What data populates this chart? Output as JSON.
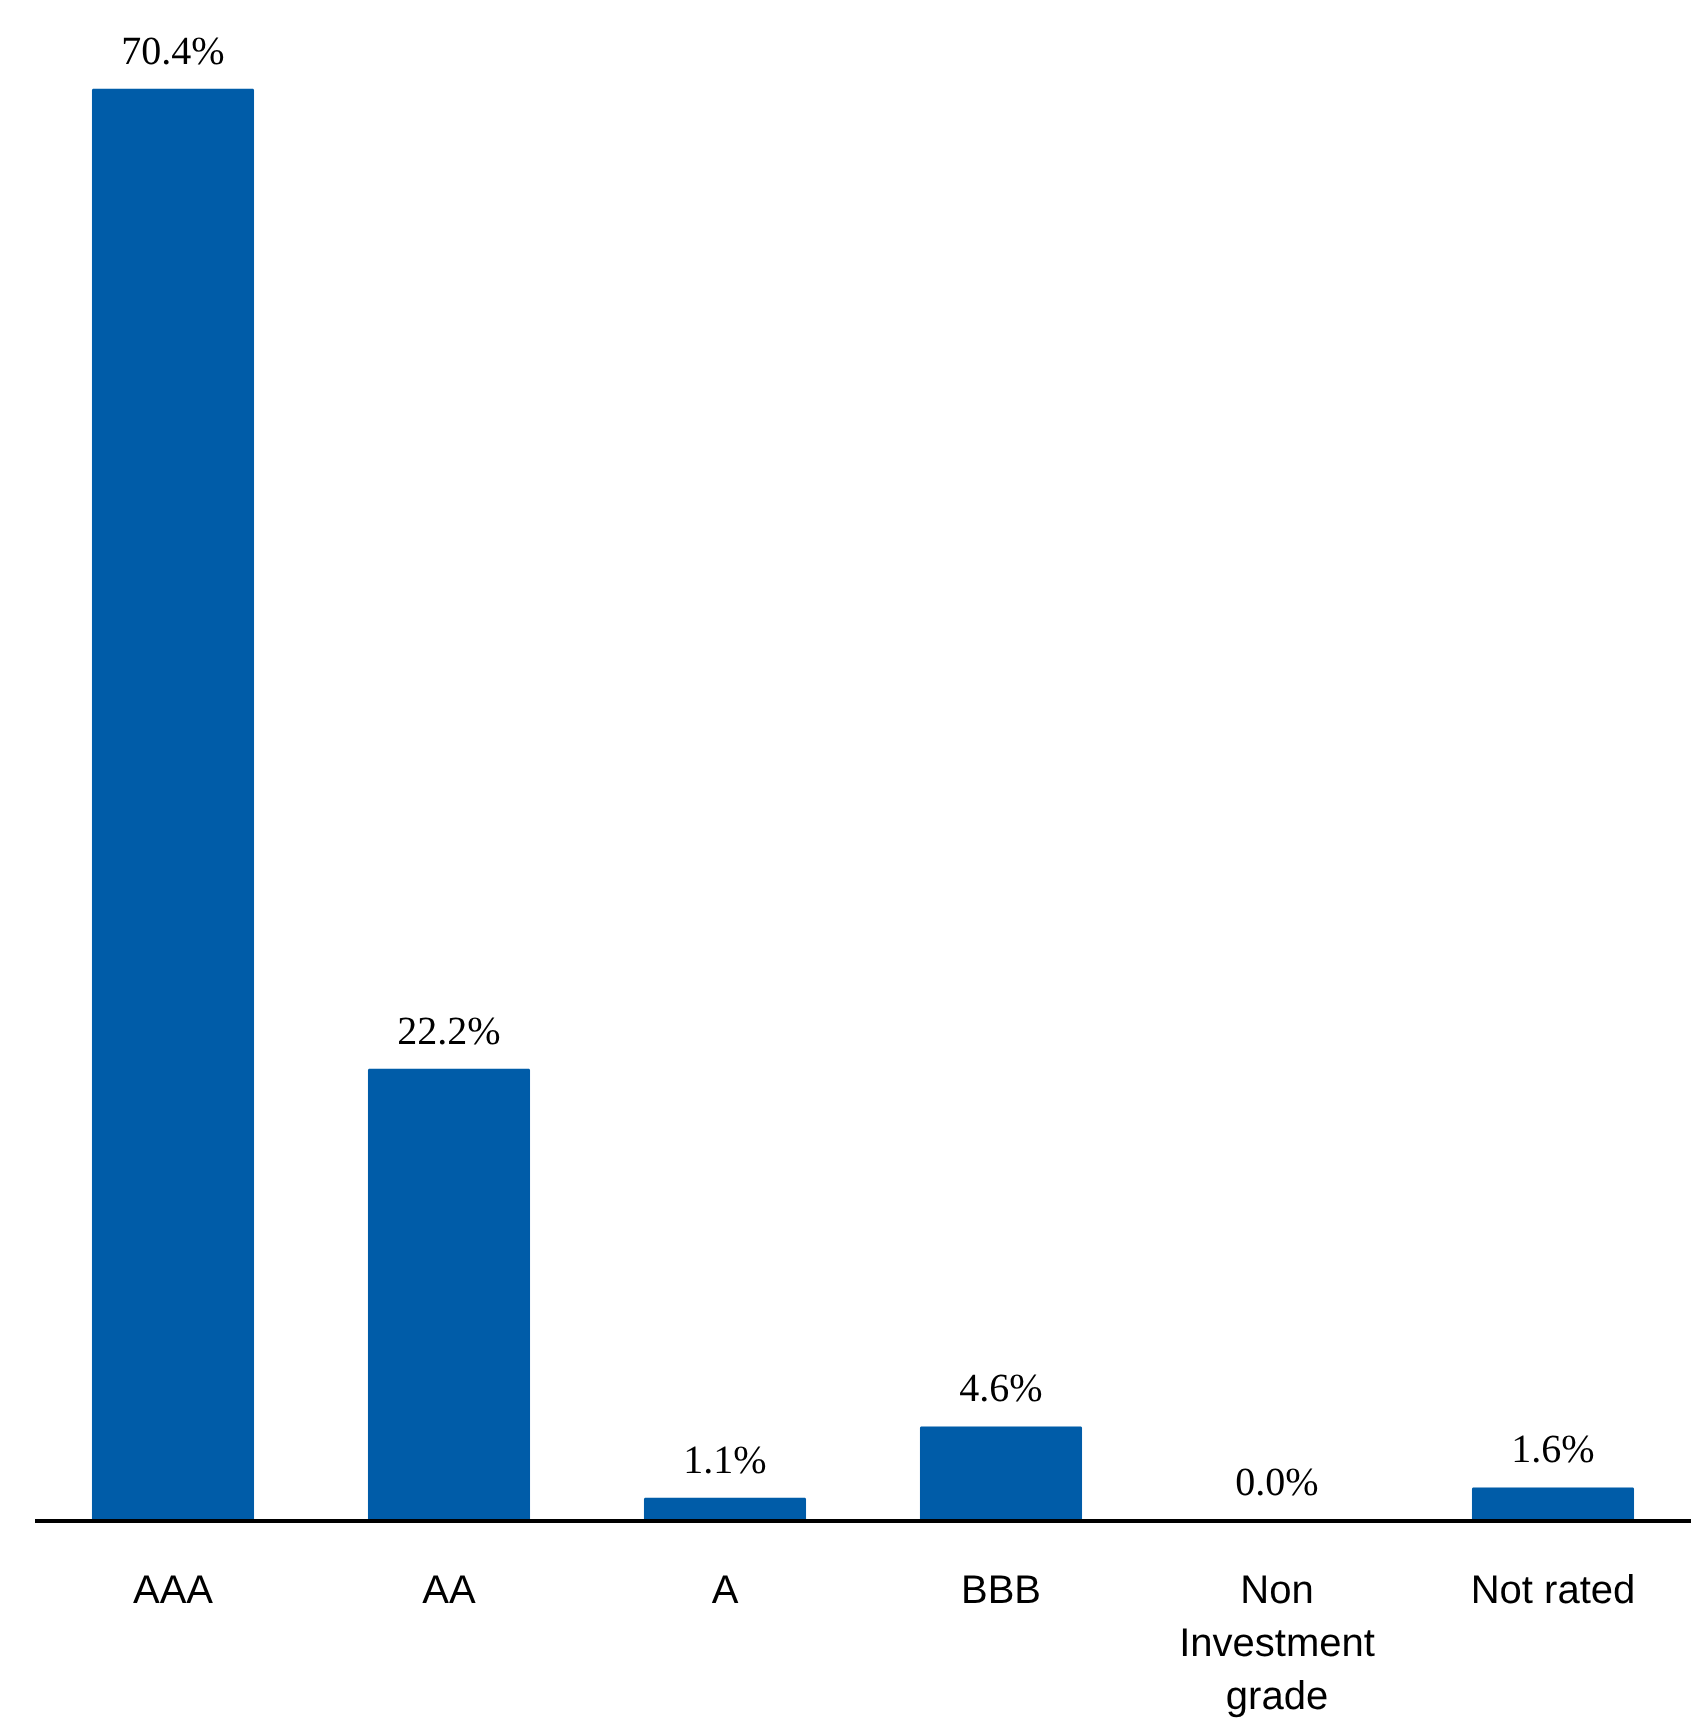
{
  "chart_data": {
    "type": "bar",
    "categories": [
      "AAA",
      "AA",
      "A",
      "BBB",
      "Non Investment grade",
      "Not rated"
    ],
    "values": [
      70.4,
      22.2,
      1.1,
      4.6,
      0.0,
      1.6
    ],
    "value_labels": [
      "70.4%",
      "22.2%",
      "1.1%",
      "4.6%",
      "0.0%",
      "1.6%"
    ],
    "color": "#005ca8",
    "grid": false
  }
}
